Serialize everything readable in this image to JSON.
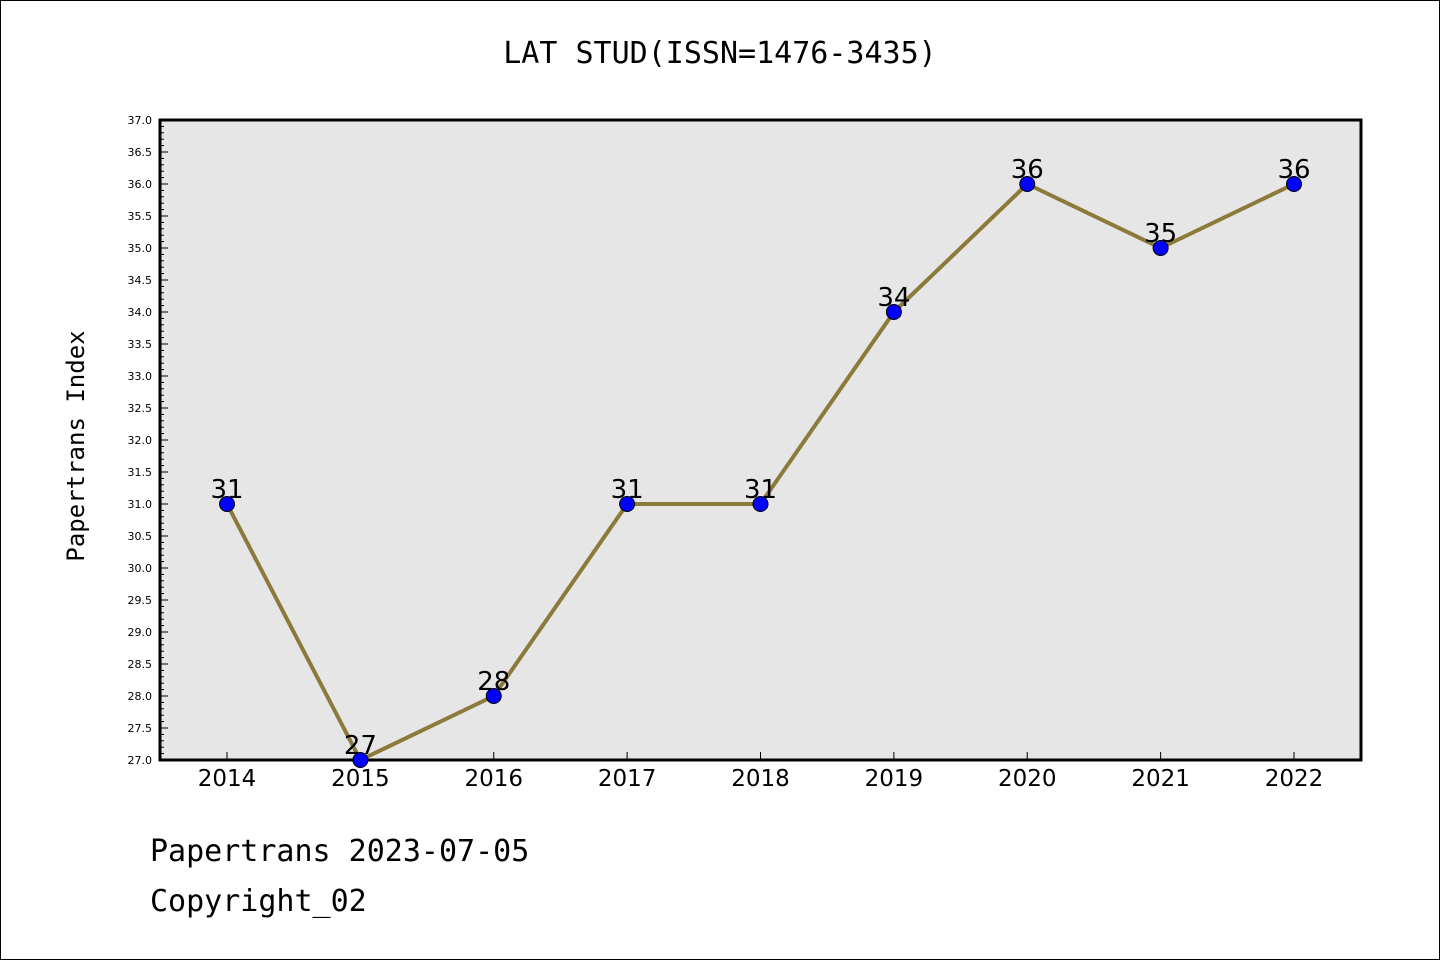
{
  "footer": {
    "line1": "Papertrans 2023-07-05",
    "line2": "Copyright_02"
  },
  "chart_data": {
    "type": "line",
    "title": "LAT STUD(ISSN=1476-3435)",
    "xlabel": "",
    "ylabel": "Papertrans Index",
    "categories": [
      "2014",
      "2015",
      "2016",
      "2017",
      "2018",
      "2019",
      "2020",
      "2021",
      "2022"
    ],
    "values": [
      31,
      27,
      28,
      31,
      31,
      34,
      36,
      35,
      36
    ],
    "data_labels": [
      "31",
      "27",
      "28",
      "31",
      "31",
      "34",
      "36",
      "35",
      "36"
    ],
    "ylim": [
      27.0,
      37.0
    ],
    "yticks": [
      "27.0",
      "27.5",
      "28.0",
      "28.5",
      "29.0",
      "29.5",
      "30.0",
      "30.5",
      "31.0",
      "31.5",
      "32.0",
      "32.5",
      "33.0",
      "33.5",
      "34.0",
      "34.5",
      "35.0",
      "35.5",
      "36.0",
      "36.5",
      "37.0"
    ],
    "grid": false,
    "colors": {
      "line": "#8b7a3a",
      "marker": "#0000ff",
      "plot_background": "#e6e6e6"
    }
  }
}
